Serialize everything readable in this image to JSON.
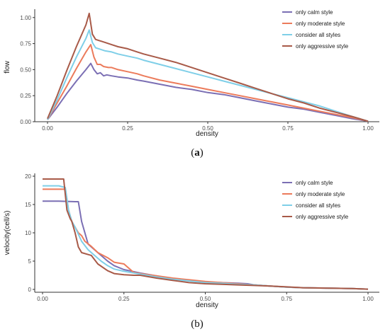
{
  "chart_data": [
    {
      "type": "line",
      "caption": "(a)",
      "caption_letter": "a",
      "xlabel": "density",
      "ylabel": "flow",
      "xlim": [
        0,
        1
      ],
      "ylim": [
        0,
        1.08
      ],
      "xticks": [
        "0.00",
        "0.25",
        "0.50",
        "0.75",
        "1.00"
      ],
      "yticks": [
        "0.00",
        "0.25",
        "0.50",
        "0.75",
        "1.00"
      ],
      "grid": false,
      "legend_position": "top-right",
      "series": [
        {
          "name": "only calm style",
          "color": "#7b6fb4",
          "points": [
            [
              0.0,
              0.02
            ],
            [
              0.03,
              0.14
            ],
            [
              0.06,
              0.27
            ],
            [
              0.09,
              0.39
            ],
            [
              0.12,
              0.5
            ],
            [
              0.135,
              0.56
            ],
            [
              0.145,
              0.5
            ],
            [
              0.155,
              0.46
            ],
            [
              0.165,
              0.47
            ],
            [
              0.175,
              0.44
            ],
            [
              0.185,
              0.45
            ],
            [
              0.2,
              0.44
            ],
            [
              0.22,
              0.43
            ],
            [
              0.25,
              0.42
            ],
            [
              0.28,
              0.4
            ],
            [
              0.3,
              0.39
            ],
            [
              0.35,
              0.36
            ],
            [
              0.4,
              0.33
            ],
            [
              0.45,
              0.31
            ],
            [
              0.5,
              0.28
            ],
            [
              0.55,
              0.26
            ],
            [
              0.6,
              0.23
            ],
            [
              0.65,
              0.2
            ],
            [
              0.7,
              0.17
            ],
            [
              0.75,
              0.14
            ],
            [
              0.8,
              0.12
            ],
            [
              0.85,
              0.09
            ],
            [
              0.9,
              0.06
            ],
            [
              0.95,
              0.03
            ],
            [
              1.0,
              0.005
            ]
          ]
        },
        {
          "name": "only moderate style",
          "color": "#ec7b5b",
          "points": [
            [
              0.0,
              0.02
            ],
            [
              0.03,
              0.18
            ],
            [
              0.06,
              0.34
            ],
            [
              0.09,
              0.51
            ],
            [
              0.12,
              0.67
            ],
            [
              0.135,
              0.74
            ],
            [
              0.145,
              0.62
            ],
            [
              0.155,
              0.55
            ],
            [
              0.165,
              0.55
            ],
            [
              0.175,
              0.53
            ],
            [
              0.19,
              0.52
            ],
            [
              0.2,
              0.52
            ],
            [
              0.22,
              0.5
            ],
            [
              0.25,
              0.48
            ],
            [
              0.28,
              0.46
            ],
            [
              0.3,
              0.44
            ],
            [
              0.35,
              0.4
            ],
            [
              0.4,
              0.37
            ],
            [
              0.45,
              0.34
            ],
            [
              0.5,
              0.31
            ],
            [
              0.55,
              0.28
            ],
            [
              0.6,
              0.25
            ],
            [
              0.65,
              0.22
            ],
            [
              0.7,
              0.19
            ],
            [
              0.75,
              0.16
            ],
            [
              0.8,
              0.13
            ],
            [
              0.85,
              0.1
            ],
            [
              0.9,
              0.07
            ],
            [
              0.95,
              0.04
            ],
            [
              1.0,
              0.005
            ]
          ]
        },
        {
          "name": "consider all styles",
          "color": "#7fcfe8",
          "points": [
            [
              0.0,
              0.02
            ],
            [
              0.03,
              0.21
            ],
            [
              0.06,
              0.42
            ],
            [
              0.09,
              0.62
            ],
            [
              0.12,
              0.8
            ],
            [
              0.13,
              0.88
            ],
            [
              0.14,
              0.76
            ],
            [
              0.15,
              0.71
            ],
            [
              0.16,
              0.7
            ],
            [
              0.17,
              0.69
            ],
            [
              0.18,
              0.68
            ],
            [
              0.2,
              0.67
            ],
            [
              0.22,
              0.65
            ],
            [
              0.25,
              0.63
            ],
            [
              0.28,
              0.61
            ],
            [
              0.3,
              0.59
            ],
            [
              0.35,
              0.55
            ],
            [
              0.4,
              0.51
            ],
            [
              0.45,
              0.47
            ],
            [
              0.5,
              0.43
            ],
            [
              0.55,
              0.39
            ],
            [
              0.6,
              0.35
            ],
            [
              0.65,
              0.31
            ],
            [
              0.7,
              0.27
            ],
            [
              0.75,
              0.23
            ],
            [
              0.8,
              0.19
            ],
            [
              0.85,
              0.15
            ],
            [
              0.9,
              0.1
            ],
            [
              0.95,
              0.05
            ],
            [
              1.0,
              0.005
            ]
          ]
        },
        {
          "name": "only aggressive style",
          "color": "#a85a48",
          "points": [
            [
              0.0,
              0.03
            ],
            [
              0.03,
              0.25
            ],
            [
              0.06,
              0.49
            ],
            [
              0.09,
              0.72
            ],
            [
              0.12,
              0.93
            ],
            [
              0.13,
              1.04
            ],
            [
              0.14,
              0.84
            ],
            [
              0.15,
              0.79
            ],
            [
              0.16,
              0.78
            ],
            [
              0.17,
              0.77
            ],
            [
              0.18,
              0.76
            ],
            [
              0.2,
              0.74
            ],
            [
              0.22,
              0.72
            ],
            [
              0.25,
              0.7
            ],
            [
              0.28,
              0.67
            ],
            [
              0.3,
              0.65
            ],
            [
              0.35,
              0.61
            ],
            [
              0.4,
              0.57
            ],
            [
              0.45,
              0.52
            ],
            [
              0.5,
              0.47
            ],
            [
              0.55,
              0.42
            ],
            [
              0.6,
              0.37
            ],
            [
              0.65,
              0.32
            ],
            [
              0.7,
              0.27
            ],
            [
              0.75,
              0.22
            ],
            [
              0.8,
              0.18
            ],
            [
              0.85,
              0.13
            ],
            [
              0.9,
              0.09
            ],
            [
              0.95,
              0.05
            ],
            [
              1.0,
              0.005
            ]
          ]
        }
      ]
    },
    {
      "type": "line",
      "caption": "(b)",
      "caption_letter": "b",
      "xlabel": "density",
      "ylabel": "velocity(cell/s)",
      "xlim": [
        0,
        1
      ],
      "ylim": [
        -0.5,
        20.5
      ],
      "xticks": [
        "0.00",
        "0.25",
        "0.50",
        "0.75",
        "1.00"
      ],
      "yticks": [
        "0",
        "5",
        "10",
        "15",
        "20"
      ],
      "grid": false,
      "legend_position": "top-right",
      "series": [
        {
          "name": "only calm style",
          "color": "#7b6fb4",
          "points": [
            [
              0.0,
              15.6
            ],
            [
              0.05,
              15.6
            ],
            [
              0.1,
              15.5
            ],
            [
              0.11,
              15.5
            ],
            [
              0.12,
              12.0
            ],
            [
              0.13,
              10.0
            ],
            [
              0.14,
              8.0
            ],
            [
              0.16,
              7.0
            ],
            [
              0.18,
              6.0
            ],
            [
              0.2,
              5.0
            ],
            [
              0.22,
              4.2
            ],
            [
              0.25,
              3.5
            ],
            [
              0.3,
              2.9
            ],
            [
              0.35,
              2.4
            ],
            [
              0.4,
              1.9
            ],
            [
              0.45,
              1.6
            ],
            [
              0.5,
              1.3
            ],
            [
              0.55,
              1.2
            ],
            [
              0.6,
              1.1
            ],
            [
              0.63,
              1.0
            ],
            [
              0.65,
              0.8
            ],
            [
              0.7,
              0.6
            ],
            [
              0.75,
              0.4
            ],
            [
              0.8,
              0.3
            ],
            [
              0.85,
              0.25
            ],
            [
              0.9,
              0.2
            ],
            [
              0.95,
              0.15
            ],
            [
              1.0,
              0.05
            ]
          ]
        },
        {
          "name": "only moderate style",
          "color": "#ec7b5b",
          "points": [
            [
              0.0,
              17.7
            ],
            [
              0.05,
              17.7
            ],
            [
              0.07,
              17.7
            ],
            [
              0.08,
              14.0
            ],
            [
              0.09,
              12.0
            ],
            [
              0.1,
              11.0
            ],
            [
              0.11,
              10.0
            ],
            [
              0.12,
              9.5
            ],
            [
              0.13,
              8.5
            ],
            [
              0.15,
              7.6
            ],
            [
              0.17,
              6.5
            ],
            [
              0.2,
              5.6
            ],
            [
              0.22,
              4.8
            ],
            [
              0.25,
              4.5
            ],
            [
              0.28,
              3.0
            ],
            [
              0.3,
              2.8
            ],
            [
              0.35,
              2.4
            ],
            [
              0.4,
              2.0
            ],
            [
              0.45,
              1.7
            ],
            [
              0.5,
              1.4
            ],
            [
              0.55,
              1.2
            ],
            [
              0.6,
              1.0
            ],
            [
              0.65,
              0.8
            ],
            [
              0.7,
              0.6
            ],
            [
              0.75,
              0.4
            ],
            [
              0.8,
              0.3
            ],
            [
              0.85,
              0.25
            ],
            [
              0.9,
              0.2
            ],
            [
              0.95,
              0.15
            ],
            [
              1.0,
              0.05
            ]
          ]
        },
        {
          "name": "consider all styles",
          "color": "#7fcfe8",
          "points": [
            [
              0.0,
              18.3
            ],
            [
              0.05,
              18.3
            ],
            [
              0.07,
              18.0
            ],
            [
              0.08,
              14.0
            ],
            [
              0.09,
              12.0
            ],
            [
              0.1,
              11.0
            ],
            [
              0.12,
              8.5
            ],
            [
              0.14,
              7.0
            ],
            [
              0.16,
              6.0
            ],
            [
              0.18,
              5.0
            ],
            [
              0.2,
              4.2
            ],
            [
              0.22,
              3.6
            ],
            [
              0.25,
              3.2
            ],
            [
              0.28,
              2.9
            ],
            [
              0.3,
              2.7
            ],
            [
              0.35,
              2.2
            ],
            [
              0.4,
              1.8
            ],
            [
              0.45,
              1.5
            ],
            [
              0.5,
              1.2
            ],
            [
              0.55,
              1.1
            ],
            [
              0.6,
              0.9
            ],
            [
              0.65,
              0.8
            ],
            [
              0.7,
              0.6
            ],
            [
              0.75,
              0.4
            ],
            [
              0.8,
              0.3
            ],
            [
              0.85,
              0.25
            ],
            [
              0.9,
              0.2
            ],
            [
              0.95,
              0.15
            ],
            [
              1.0,
              0.05
            ]
          ]
        },
        {
          "name": "only aggressive style",
          "color": "#a85a48",
          "points": [
            [
              0.0,
              19.5
            ],
            [
              0.05,
              19.5
            ],
            [
              0.065,
              19.5
            ],
            [
              0.075,
              14.0
            ],
            [
              0.085,
              12.5
            ],
            [
              0.09,
              12.0
            ],
            [
              0.1,
              10.0
            ],
            [
              0.11,
              7.5
            ],
            [
              0.12,
              6.5
            ],
            [
              0.15,
              6.0
            ],
            [
              0.17,
              4.5
            ],
            [
              0.2,
              3.3
            ],
            [
              0.22,
              2.8
            ],
            [
              0.25,
              2.6
            ],
            [
              0.28,
              2.5
            ],
            [
              0.3,
              2.5
            ],
            [
              0.35,
              2.0
            ],
            [
              0.4,
              1.6
            ],
            [
              0.45,
              1.2
            ],
            [
              0.5,
              1.0
            ],
            [
              0.55,
              0.9
            ],
            [
              0.6,
              0.8
            ],
            [
              0.65,
              0.7
            ],
            [
              0.7,
              0.6
            ],
            [
              0.75,
              0.45
            ],
            [
              0.8,
              0.3
            ],
            [
              0.85,
              0.25
            ],
            [
              0.9,
              0.2
            ],
            [
              0.95,
              0.15
            ],
            [
              1.0,
              0.05
            ]
          ]
        }
      ]
    }
  ]
}
